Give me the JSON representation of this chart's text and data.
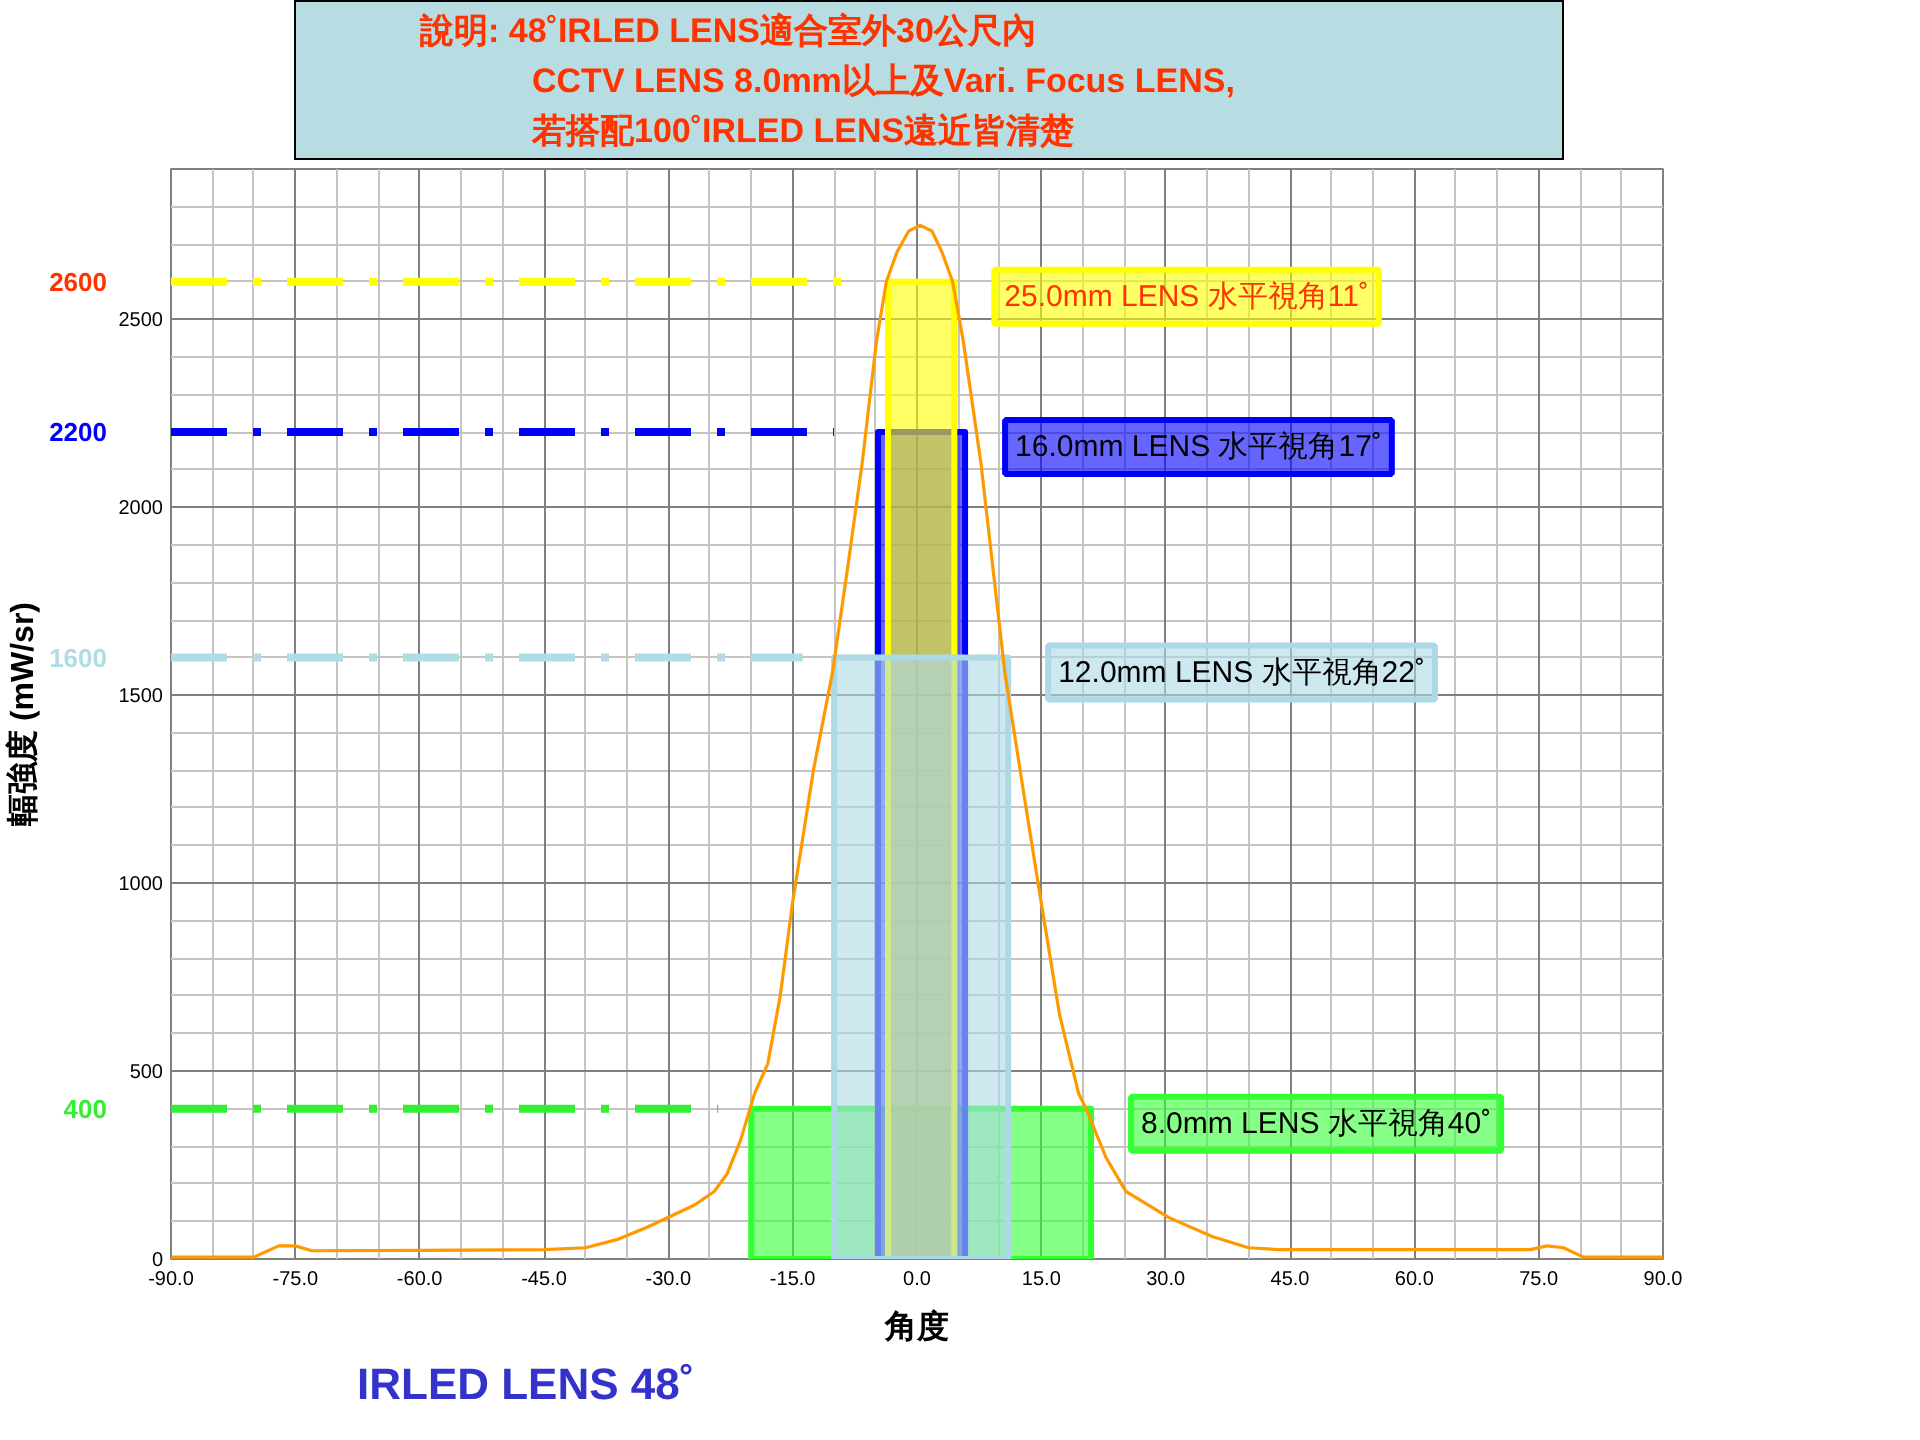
{
  "chart_data": {
    "type": "line",
    "title": "IRLED LENS 48˚",
    "xlabel": "角度",
    "ylabel": "輻強度 (mW/sr)",
    "annotations": [
      "說明: 48˚IRLED LENS適合室外30公尺內",
      "CCTV LENS 8.0mm以上及Vari. Focus LENS,",
      "若搭配100˚IRLED LENS遠近皆清楚"
    ],
    "xlim": [
      -90,
      90
    ],
    "ylim": [
      0,
      2900
    ],
    "xticks": [
      {
        "value": -90,
        "label": "-90.0"
      },
      {
        "value": -85,
        "label": null
      },
      {
        "value": -80,
        "label": null
      },
      {
        "value": -75,
        "label": "-75.0"
      },
      {
        "value": -70,
        "label": null
      },
      {
        "value": -65,
        "label": null
      },
      {
        "value": -60,
        "label": "-60.0"
      },
      {
        "value": -55,
        "label": null
      },
      {
        "value": -50,
        "label": null
      },
      {
        "value": -45,
        "label": "-45.0"
      },
      {
        "value": -40,
        "label": null
      },
      {
        "value": -35,
        "label": null
      },
      {
        "value": -30,
        "label": "-30.0"
      },
      {
        "value": -25,
        "label": null
      },
      {
        "value": -20,
        "label": null
      },
      {
        "value": -15,
        "label": "-15.0"
      },
      {
        "value": -10,
        "label": null
      },
      {
        "value": -5,
        "label": null
      },
      {
        "value": 0,
        "label": "0.0"
      },
      {
        "value": 5,
        "label": null
      },
      {
        "value": 10,
        "label": null
      },
      {
        "value": 15,
        "label": "15.0"
      },
      {
        "value": 20,
        "label": null
      },
      {
        "value": 25,
        "label": null
      },
      {
        "value": 30,
        "label": "30.0"
      },
      {
        "value": 35,
        "label": null
      },
      {
        "value": 40,
        "label": null
      },
      {
        "value": 45,
        "label": "45.0"
      },
      {
        "value": 50,
        "label": null
      },
      {
        "value": 55,
        "label": null
      },
      {
        "value": 60,
        "label": "60.0"
      },
      {
        "value": 65,
        "label": null
      },
      {
        "value": 70,
        "label": null
      },
      {
        "value": 75,
        "label": "75.0"
      },
      {
        "value": 80,
        "label": null
      },
      {
        "value": 85,
        "label": null
      },
      {
        "value": 90,
        "label": "90.0"
      }
    ],
    "yticks": [
      0,
      {
        "value": 100,
        "label": null
      },
      {
        "value": 200,
        "label": null
      },
      {
        "value": 300,
        "label": null
      },
      {
        "value": 400,
        "label": null
      },
      500,
      {
        "value": 600,
        "label": null
      },
      {
        "value": 700,
        "label": null
      },
      {
        "value": 800,
        "label": null
      },
      {
        "value": 900,
        "label": null
      },
      1000,
      {
        "value": 1100,
        "label": null
      },
      {
        "value": 1200,
        "label": null
      },
      {
        "value": 1300,
        "label": null
      },
      {
        "value": 1400,
        "label": null
      },
      1500,
      {
        "value": 1600,
        "label": null
      },
      {
        "value": 1700,
        "label": null
      },
      {
        "value": 1800,
        "label": null
      },
      {
        "value": 1900,
        "label": null
      },
      2000,
      {
        "value": 2100,
        "label": null
      },
      {
        "value": 2200,
        "label": null
      },
      {
        "value": 2300,
        "label": null
      },
      {
        "value": 2400,
        "label": null
      },
      2500,
      {
        "value": 2600,
        "label": null
      },
      {
        "value": 2700,
        "label": null
      },
      {
        "value": 2800,
        "label": null
      }
    ],
    "grid": true,
    "ref_lines": [
      {
        "axis": "y",
        "value": 2600,
        "label": "2600",
        "color": "#ffff00",
        "line_style": "dashed"
      },
      {
        "axis": "y",
        "value": 2200,
        "label": "2200",
        "color": "#0000ff",
        "line_style": "dashed"
      },
      {
        "axis": "y",
        "value": 1600,
        "label": "1600",
        "color": "#b0dde4",
        "line_style": "dashed"
      },
      {
        "axis": "y",
        "value": 400,
        "label": "400",
        "color": "#33ee33",
        "line_style": "dashed"
      }
    ],
    "series": [
      {
        "type": "area",
        "name": "8.0mm LENS 水平視角40˚",
        "color": "#33ff33",
        "x": [
          -20,
          -20,
          21,
          21
        ],
        "values": [
          0,
          400,
          400,
          0
        ]
      },
      {
        "type": "area",
        "name": "16.0mm LENS 水平視角17˚",
        "color": "#0000ff",
        "x": [
          -4.7,
          -4.7,
          5.8,
          5.8
        ],
        "values": [
          0,
          2200,
          2200,
          0
        ]
      },
      {
        "type": "area",
        "name": "25.0mm LENS 水平視角11˚",
        "color": "#ffff00",
        "x": [
          -3.5,
          -3.5,
          4.5,
          4.5
        ],
        "values": [
          0,
          2600,
          2600,
          0
        ]
      },
      {
        "type": "area",
        "name": "12.0mm LENS 水平視角22˚",
        "color": "#add8e6",
        "x": [
          -10,
          -10,
          11,
          11
        ],
        "values": [
          0,
          1600,
          1600,
          0
        ]
      },
      {
        "color": "#ff9900",
        "x": [
          -90,
          -80,
          -77,
          -75,
          -73,
          -60,
          -45,
          -40,
          -36,
          -32.5,
          -29.6,
          -26.9,
          -24.5,
          -22.9,
          -21.3,
          -19.6,
          -18,
          -16.5,
          -15,
          -12.5,
          -10.2,
          -8.3,
          -6.6,
          -4.9,
          -3.7,
          -2.4,
          -1,
          0.4,
          1.8,
          3,
          4.3,
          5.6,
          7.7,
          10.6,
          12.8,
          14.9,
          17.2,
          19.5,
          20.4,
          22.8,
          25.2,
          30.4,
          35.6,
          40,
          43.6,
          60,
          74,
          76,
          78,
          80.4,
          90
        ],
        "values": [
          5,
          5,
          35,
          35,
          22,
          23,
          25,
          30,
          53,
          85,
          115,
          143,
          179,
          227,
          315,
          440,
          520,
          700,
          950,
          1300,
          1560,
          1850,
          2120,
          2440,
          2600,
          2680,
          2735,
          2750,
          2735,
          2680,
          2600,
          2440,
          2120,
          1560,
          1250,
          960,
          650,
          440,
          400,
          270,
          180,
          110,
          60,
          30,
          25,
          25,
          25,
          35,
          30,
          5,
          5
        ]
      }
    ]
  }
}
